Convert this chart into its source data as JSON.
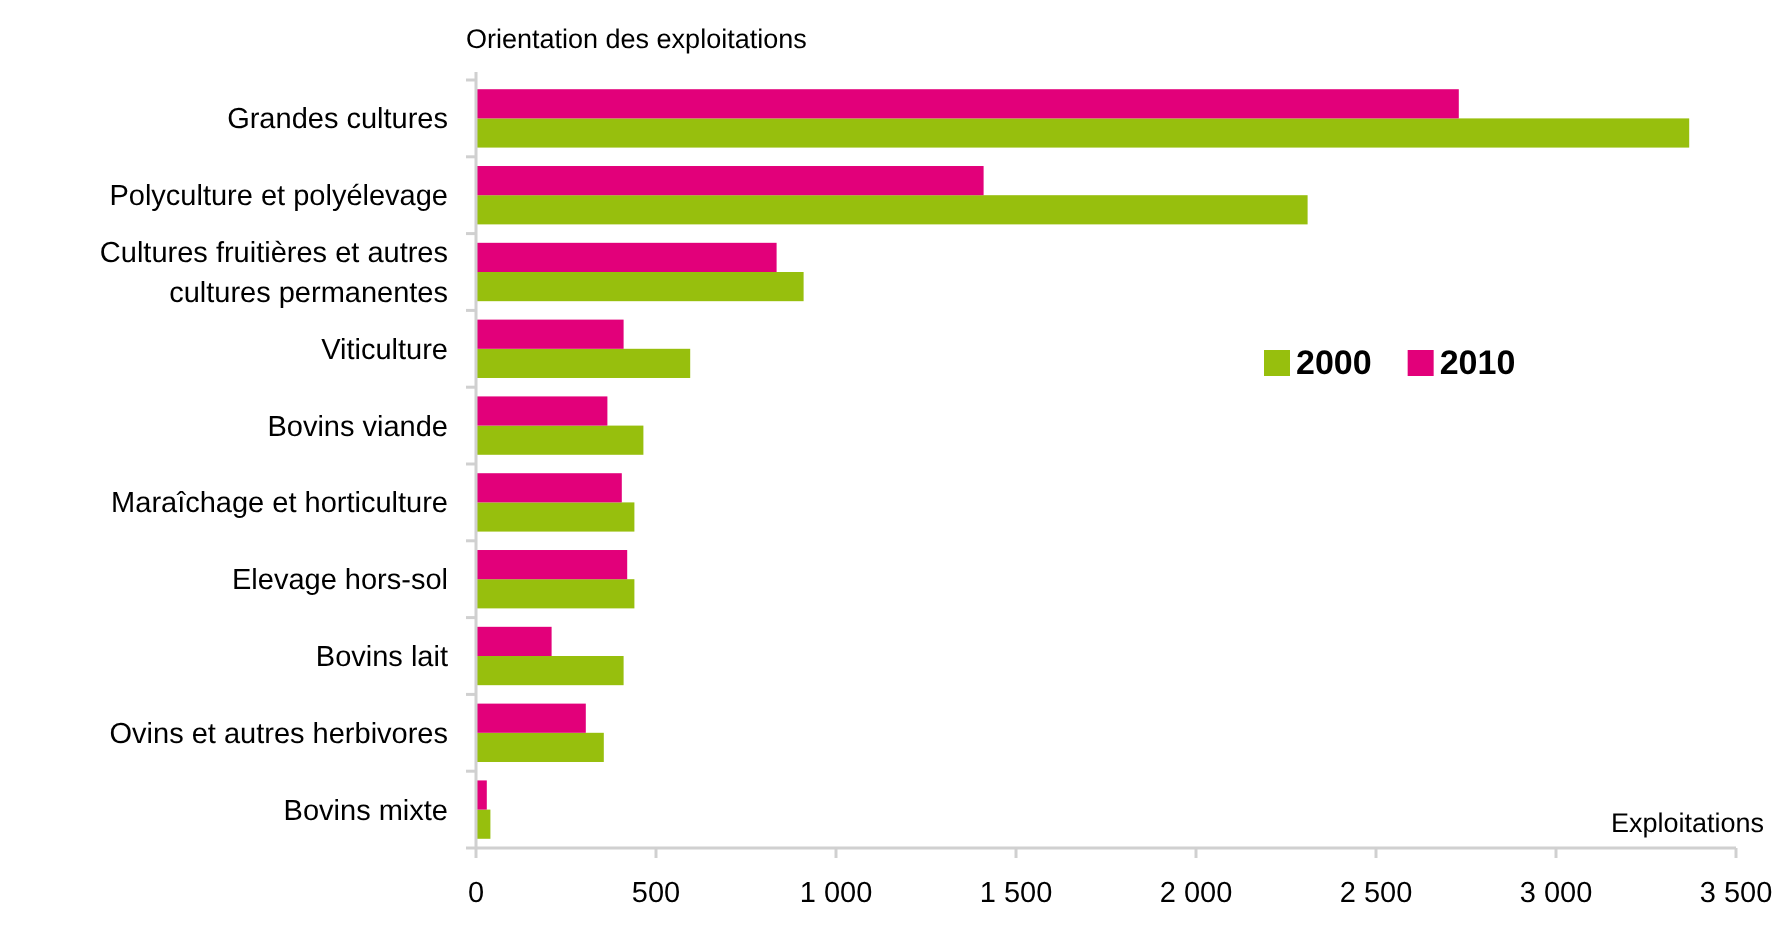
{
  "chart_data": {
    "type": "bar",
    "orientation": "horizontal",
    "title": "Orientation des exploitations",
    "xlabel": "Exploitations",
    "categories": [
      "Grandes cultures",
      "Polyculture et polyélevage",
      "Cultures fruitières et autres cultures permanentes",
      "Viticulture",
      "Bovins viande",
      "Maraîchage et horticulture",
      "Elevage hors-sol",
      "Bovins lait",
      "Ovins et autres herbivores",
      "Bovins mixte"
    ],
    "series": [
      {
        "name": "2000",
        "color": "#97bf0d",
        "values": [
          3370,
          2310,
          910,
          595,
          465,
          440,
          440,
          410,
          355,
          40
        ]
      },
      {
        "name": "2010",
        "color": "#e2007a",
        "values": [
          2730,
          1410,
          835,
          410,
          365,
          405,
          420,
          210,
          305,
          30
        ]
      }
    ],
    "xlim": [
      0,
      3500
    ],
    "xticks": [
      0,
      {
        "value": 500,
        "label": "500"
      },
      {
        "value": 1000,
        "label": "1 000"
      },
      {
        "value": 1500,
        "label": "1 500"
      },
      {
        "value": 2000,
        "label": "2 000"
      },
      {
        "value": 2500,
        "label": "2 500"
      },
      {
        "value": 3000,
        "label": "3 000"
      },
      {
        "value": 3500,
        "label": "3 500"
      }
    ],
    "grid": false,
    "legend": "right"
  }
}
